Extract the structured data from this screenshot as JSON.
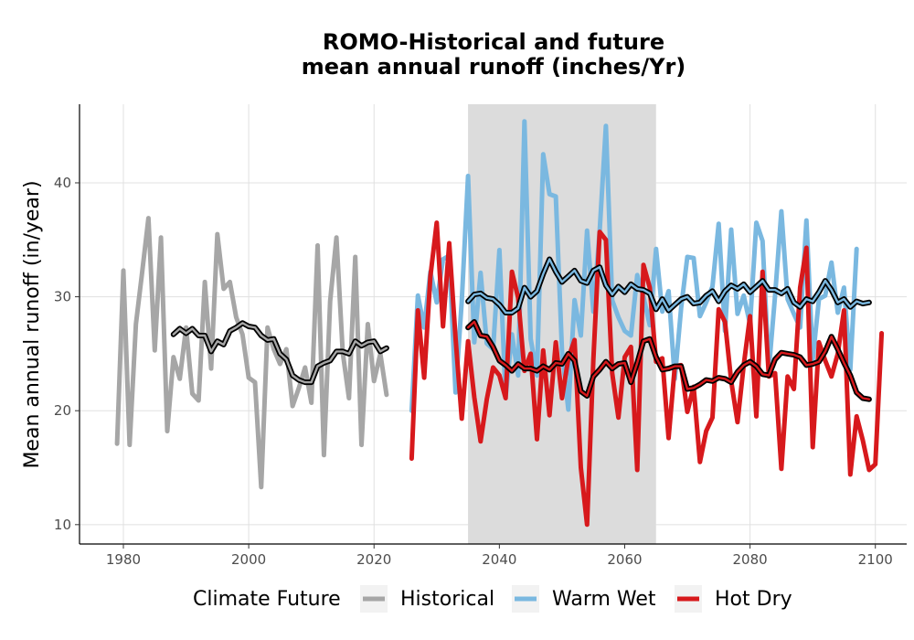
{
  "chart_data": {
    "type": "line",
    "title_lines": [
      "ROMO-Historical and future",
      "mean annual runoff (inches/Yr)"
    ],
    "xlabel": "",
    "ylabel": "Mean annual runoff (in/year)",
    "xlim": [
      1973,
      2105
    ],
    "ylim": [
      8.3,
      46.9
    ],
    "xticks": [
      1980,
      2000,
      2020,
      2040,
      2060,
      2080,
      2100
    ],
    "yticks": [
      10,
      20,
      30,
      40
    ],
    "grid": true,
    "shaded_period": [
      2035,
      2065
    ],
    "legend": {
      "title": "Climate Future",
      "position": "bottom",
      "entries": [
        "Historical",
        "Warm Wet",
        "Hot Dry"
      ]
    },
    "colors": {
      "Historical": "#a6a6a6",
      "Warm Wet": "#7ab8e0",
      "Hot Dry": "#d7191c",
      "rolling_mean": "#000000",
      "shade": "#dcdcdc",
      "grid": "#e0e0e0"
    },
    "series": [
      {
        "name": "Historical",
        "x_start": 1979,
        "values": [
          17.1,
          32.3,
          17.0,
          27.6,
          32.2,
          36.9,
          25.3,
          35.2,
          18.2,
          24.7,
          22.8,
          27.3,
          21.5,
          20.9,
          31.3,
          23.7,
          35.5,
          30.7,
          31.3,
          28.2,
          26.7,
          22.9,
          22.5,
          13.3,
          27.3,
          25.4,
          24.1,
          25.4,
          20.4,
          22.0,
          23.8,
          20.7,
          34.5,
          16.1,
          29.6,
          35.2,
          25.1,
          21.1,
          33.5,
          17.0,
          27.6,
          22.6,
          25.0,
          21.4
        ],
        "rolling_mean": {
          "x_start": 1988,
          "values": [
            26.7,
            27.2,
            26.8,
            27.2,
            26.6,
            26.6,
            25.2,
            26.1,
            25.8,
            27.0,
            27.3,
            27.7,
            27.4,
            27.3,
            26.6,
            26.2,
            26.3,
            25.0,
            24.5,
            23.1,
            22.7,
            22.5,
            22.5,
            23.9,
            24.2,
            24.4,
            25.2,
            25.2,
            25.0,
            26.1,
            25.7,
            26.0,
            26.1,
            25.2,
            25.5
          ]
        }
      },
      {
        "name": "Warm Wet",
        "x_start": 2026,
        "values": [
          20.0,
          30.1,
          27.3,
          32.2,
          29.5,
          33.3,
          33.6,
          21.6,
          29.6,
          40.6,
          26.0,
          32.1,
          25.9,
          25.4,
          34.1,
          21.2,
          26.7,
          23.1,
          45.4,
          26.3,
          23.1,
          42.5,
          39.0,
          38.8,
          25.2,
          20.1,
          29.7,
          26.6,
          35.8,
          28.7,
          35.8,
          45.0,
          29.7,
          28.2,
          27.0,
          26.6,
          31.9,
          30.0,
          27.5,
          34.2,
          28.7,
          30.5,
          22.8,
          29.0,
          33.5,
          33.4,
          28.3,
          29.5,
          30.9,
          36.4,
          27.0,
          35.9,
          28.5,
          30.1,
          27.6,
          36.5,
          34.9,
          23.6,
          30.1,
          37.5,
          29.8,
          28.5,
          27.3,
          36.7,
          24.5,
          29.8,
          30.1,
          33.0,
          28.6,
          30.8,
          23.6,
          34.2
        ],
        "rolling_mean": {
          "x_start": 2035,
          "values": [
            29.6,
            30.2,
            30.3,
            29.9,
            29.8,
            29.3,
            28.6,
            28.6,
            29.0,
            30.8,
            30.0,
            30.5,
            32.0,
            33.3,
            32.2,
            31.3,
            31.8,
            32.3,
            31.4,
            31.2,
            32.3,
            32.6,
            31.0,
            30.2,
            30.9,
            30.4,
            31.1,
            30.7,
            30.6,
            30.3,
            28.9,
            29.8,
            28.8,
            29.3,
            29.8,
            30.0,
            29.4,
            29.5,
            30.1,
            30.5,
            29.6,
            30.5,
            31.0,
            30.7,
            31.1,
            30.4,
            30.9,
            31.4,
            30.6,
            30.6,
            30.3,
            30.7,
            29.5,
            29.1,
            29.8,
            29.6,
            30.4,
            31.4,
            30.6,
            29.5,
            29.8,
            29.1,
            29.6,
            29.4,
            29.5
          ]
        }
      },
      {
        "name": "Hot Dry",
        "x_start": 2026,
        "values": [
          15.8,
          28.8,
          22.9,
          31.8,
          36.5,
          27.4,
          34.7,
          26.4,
          19.3,
          26.1,
          21.2,
          17.3,
          21.0,
          23.8,
          23.1,
          21.1,
          32.2,
          29.9,
          23.5,
          25.0,
          17.5,
          25.3,
          19.6,
          26.0,
          21.1,
          24.6,
          26.2,
          15.0,
          10.0,
          24.5,
          35.7,
          35.0,
          23.3,
          19.4,
          24.7,
          25.6,
          14.8,
          32.8,
          30.8,
          24.3,
          24.6,
          17.6,
          23.9,
          24.0,
          19.9,
          22.1,
          15.5,
          18.2,
          19.4,
          28.9,
          27.8,
          22.6,
          19.0,
          24.0,
          28.3,
          19.5,
          32.2,
          23.0,
          23.3,
          14.9,
          23.0,
          21.9,
          30.8,
          34.3,
          16.8,
          26.0,
          24.4,
          23.0,
          25.0,
          28.8,
          14.4,
          19.5,
          17.4,
          14.8,
          15.3,
          26.8
        ],
        "rolling_mean": {
          "x_start": 2035,
          "values": [
            27.3,
            27.8,
            26.6,
            26.5,
            25.6,
            24.4,
            24.0,
            23.5,
            24.1,
            23.7,
            23.7,
            23.5,
            23.9,
            23.6,
            24.2,
            24.1,
            25.0,
            24.4,
            21.7,
            21.3,
            23.0,
            23.6,
            24.3,
            23.7,
            24.1,
            24.2,
            22.5,
            24.2,
            26.1,
            26.3,
            24.7,
            23.6,
            23.7,
            23.9,
            23.9,
            21.9,
            22.0,
            22.3,
            22.7,
            22.6,
            22.9,
            22.8,
            22.5,
            23.4,
            24.0,
            24.3,
            23.9,
            23.2,
            23.1,
            24.5,
            25.1,
            25.0,
            24.9,
            24.7,
            24.0,
            24.1,
            24.3,
            25.2,
            26.5,
            25.4,
            24.2,
            23.1,
            21.6,
            21.1,
            21.0
          ]
        }
      }
    ]
  }
}
